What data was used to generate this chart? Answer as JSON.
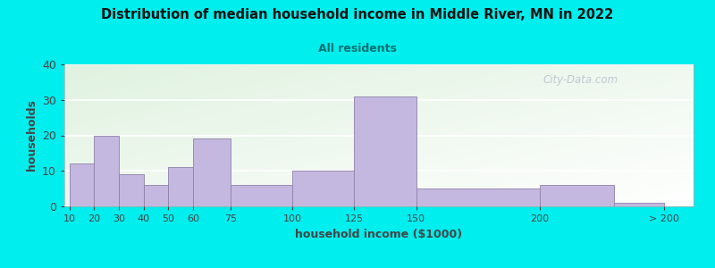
{
  "title": "Distribution of median household income in Middle River, MN in 2022",
  "subtitle": "All residents",
  "xlabel": "household income ($1000)",
  "ylabel": "households",
  "background_color": "#00EEEE",
  "bar_color": "#C4B8E0",
  "bar_edge_color": "#9080AA",
  "title_color": "#111111",
  "subtitle_color": "#007070",
  "axis_label_color": "#444444",
  "tick_labels": [
    "10",
    "20",
    "30",
    "40",
    "50",
    "60",
    "75",
    "100",
    "125",
    "150",
    "200",
    "> 200"
  ],
  "bar_heights": [
    12,
    20,
    9,
    6,
    11,
    19,
    6,
    10,
    31,
    5,
    6,
    1
  ],
  "bar_left_edges": [
    10,
    20,
    30,
    40,
    50,
    60,
    75,
    100,
    125,
    150,
    200,
    230
  ],
  "bar_widths": [
    10,
    10,
    10,
    10,
    10,
    15,
    25,
    25,
    25,
    50,
    30,
    20
  ],
  "tick_positions": [
    10,
    20,
    30,
    40,
    50,
    60,
    75,
    100,
    125,
    150,
    200,
    250
  ],
  "xlim_left": 8,
  "xlim_right": 262,
  "ylim": [
    0,
    40
  ],
  "yticks": [
    0,
    10,
    20,
    30,
    40
  ],
  "watermark": "City-Data.com"
}
